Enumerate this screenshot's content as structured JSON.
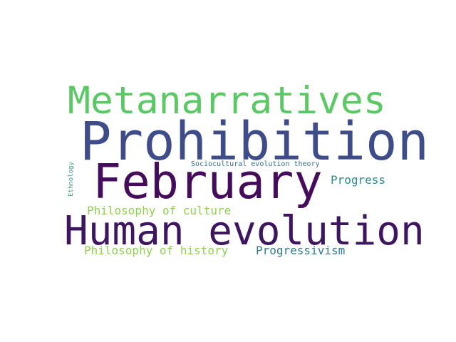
{
  "words": [
    {
      "id": "metanarratives",
      "text": "Metanarratives",
      "color": "#5ac864"
    },
    {
      "id": "prohibition",
      "text": "Prohibition",
      "color": "#3e4c8a"
    },
    {
      "id": "february",
      "text": "February",
      "color": "#440c5a"
    },
    {
      "id": "human_evolution",
      "text": "Human evolution",
      "color": "#3d165f"
    },
    {
      "id": "sociocultural",
      "text": "Sociocultural evolution theory",
      "color": "#3a6e8f"
    },
    {
      "id": "progress",
      "text": "Progress",
      "color": "#2c8a8c"
    },
    {
      "id": "philosophy_of_culture",
      "text": "Philosophy of culture",
      "color": "#8fd14f"
    },
    {
      "id": "philosophy_of_history",
      "text": "Philosophy of history",
      "color": "#8fd14f"
    },
    {
      "id": "progressivism",
      "text": "Progressivism",
      "color": "#2f7a8e"
    },
    {
      "id": "ethnology",
      "text": "Ethnology",
      "color": "#3aa18a"
    }
  ]
}
